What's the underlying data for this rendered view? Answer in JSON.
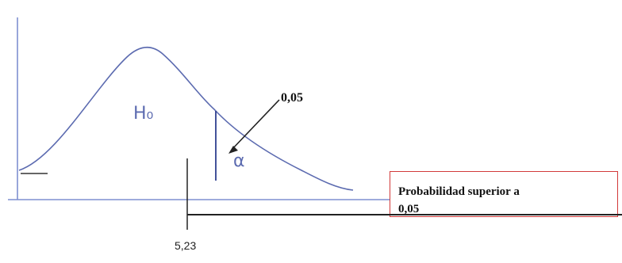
{
  "diagram": {
    "curve_label": "H₀",
    "alpha_symbol": "α",
    "alpha_value_label": "0,05",
    "critical_value_label": "5,23",
    "result_box": {
      "line1": "Probabilidad superior a",
      "line2": "0,05"
    },
    "colors": {
      "curve": "#5c6bb0",
      "axis": "#7f8fd0",
      "box_border": "#d23a3a",
      "ink": "#222222"
    }
  }
}
